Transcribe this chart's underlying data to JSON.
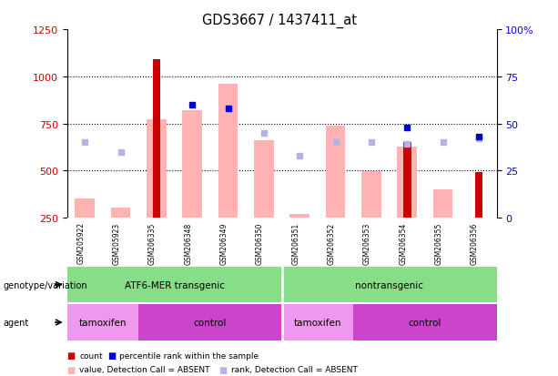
{
  "title": "GDS3667 / 1437411_at",
  "samples": [
    "GSM205922",
    "GSM205923",
    "GSM206335",
    "GSM206348",
    "GSM206349",
    "GSM206350",
    "GSM206351",
    "GSM206352",
    "GSM206353",
    "GSM206354",
    "GSM206355",
    "GSM206356"
  ],
  "count_values": [
    null,
    null,
    1090,
    null,
    null,
    null,
    null,
    null,
    null,
    650,
    null,
    490
  ],
  "value_absent": [
    350,
    305,
    770,
    820,
    960,
    660,
    270,
    740,
    495,
    625,
    400,
    null
  ],
  "rank_absent_pct": [
    40,
    35,
    null,
    null,
    null,
    45,
    33,
    40,
    40,
    39,
    40,
    42
  ],
  "percentile_rank_pct": [
    null,
    null,
    null,
    60,
    58,
    null,
    null,
    null,
    null,
    48,
    null,
    43
  ],
  "ylim_left": [
    250,
    1250
  ],
  "ylim_right": [
    0,
    100
  ],
  "yticks_left": [
    250,
    500,
    750,
    1000,
    1250
  ],
  "yticks_right": [
    0,
    25,
    50,
    75,
    100
  ],
  "count_color": "#cc0000",
  "value_absent_color": "#ffb3b3",
  "rank_absent_color": "#b3b3e6",
  "percentile_color": "#0000cc",
  "sample_bg_color": "#c8c8c8",
  "genotype_color": "#88dd88",
  "agent_tamoxifen_color": "#ee99ee",
  "agent_control_color": "#cc44cc",
  "legend_items": [
    {
      "label": "count",
      "color": "#cc0000"
    },
    {
      "label": "percentile rank within the sample",
      "color": "#0000cc"
    },
    {
      "label": "value, Detection Call = ABSENT",
      "color": "#ffb3b3"
    },
    {
      "label": "rank, Detection Call = ABSENT",
      "color": "#b3b3e6"
    }
  ]
}
